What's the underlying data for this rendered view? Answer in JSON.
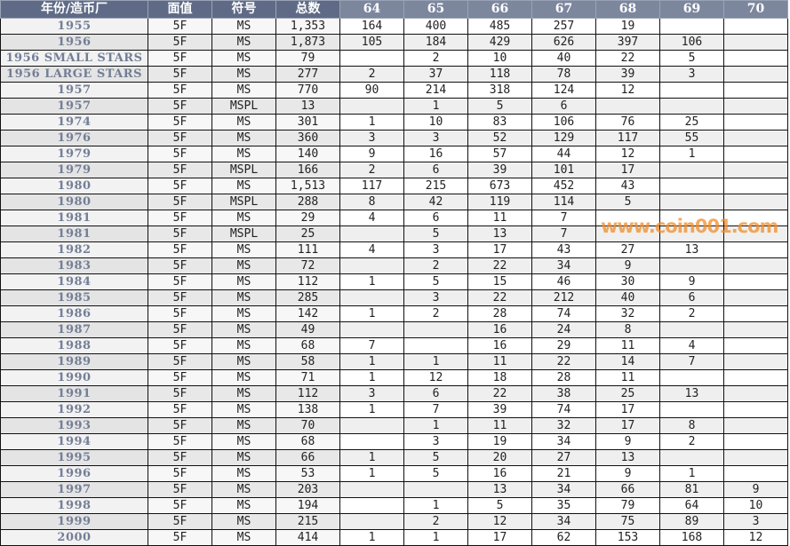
{
  "table": {
    "headers": [
      "年份/造币厂",
      "面值",
      "符号",
      "总数",
      "64",
      "65",
      "66",
      "67",
      "68",
      "69",
      "70"
    ],
    "rows": [
      [
        "1955",
        "5F",
        "MS",
        "1,353",
        "164",
        "400",
        "485",
        "257",
        "19",
        "",
        ""
      ],
      [
        "1956",
        "5F",
        "MS",
        "1,873",
        "105",
        "184",
        "429",
        "626",
        "397",
        "106",
        ""
      ],
      [
        "1956 SMALL STARS",
        "5F",
        "MS",
        "79",
        "",
        "2",
        "10",
        "40",
        "22",
        "5",
        ""
      ],
      [
        "1956 LARGE STARS",
        "5F",
        "MS",
        "277",
        "2",
        "37",
        "118",
        "78",
        "39",
        "3",
        ""
      ],
      [
        "1957",
        "5F",
        "MS",
        "770",
        "90",
        "214",
        "318",
        "124",
        "12",
        "",
        ""
      ],
      [
        "1957",
        "5F",
        "MSPL",
        "13",
        "",
        "1",
        "5",
        "6",
        "",
        "",
        ""
      ],
      [
        "1974",
        "5F",
        "MS",
        "301",
        "1",
        "10",
        "83",
        "106",
        "76",
        "25",
        ""
      ],
      [
        "1976",
        "5F",
        "MS",
        "360",
        "3",
        "3",
        "52",
        "129",
        "117",
        "55",
        ""
      ],
      [
        "1979",
        "5F",
        "MS",
        "140",
        "9",
        "16",
        "57",
        "44",
        "12",
        "1",
        ""
      ],
      [
        "1979",
        "5F",
        "MSPL",
        "166",
        "2",
        "6",
        "39",
        "101",
        "17",
        "",
        ""
      ],
      [
        "1980",
        "5F",
        "MS",
        "1,513",
        "117",
        "215",
        "673",
        "452",
        "43",
        "",
        ""
      ],
      [
        "1980",
        "5F",
        "MSPL",
        "288",
        "8",
        "42",
        "119",
        "114",
        "5",
        "",
        ""
      ],
      [
        "1981",
        "5F",
        "MS",
        "29",
        "4",
        "6",
        "11",
        "7",
        "",
        "",
        ""
      ],
      [
        "1981",
        "5F",
        "MSPL",
        "25",
        "",
        "5",
        "13",
        "7",
        "",
        "",
        ""
      ],
      [
        "1982",
        "5F",
        "MS",
        "111",
        "4",
        "3",
        "17",
        "43",
        "27",
        "13",
        ""
      ],
      [
        "1983",
        "5F",
        "MS",
        "72",
        "",
        "2",
        "22",
        "34",
        "9",
        "",
        ""
      ],
      [
        "1984",
        "5F",
        "MS",
        "112",
        "1",
        "5",
        "15",
        "46",
        "30",
        "9",
        ""
      ],
      [
        "1985",
        "5F",
        "MS",
        "285",
        "",
        "3",
        "22",
        "212",
        "40",
        "6",
        ""
      ],
      [
        "1986",
        "5F",
        "MS",
        "142",
        "1",
        "2",
        "28",
        "74",
        "32",
        "2",
        ""
      ],
      [
        "1987",
        "5F",
        "MS",
        "49",
        "",
        "",
        "16",
        "24",
        "8",
        "",
        ""
      ],
      [
        "1988",
        "5F",
        "MS",
        "68",
        "7",
        "",
        "16",
        "29",
        "11",
        "4",
        ""
      ],
      [
        "1989",
        "5F",
        "MS",
        "58",
        "1",
        "1",
        "11",
        "22",
        "14",
        "7",
        ""
      ],
      [
        "1990",
        "5F",
        "MS",
        "71",
        "1",
        "12",
        "18",
        "28",
        "11",
        "",
        ""
      ],
      [
        "1991",
        "5F",
        "MS",
        "112",
        "3",
        "6",
        "22",
        "38",
        "25",
        "13",
        ""
      ],
      [
        "1992",
        "5F",
        "MS",
        "138",
        "1",
        "7",
        "39",
        "74",
        "17",
        "",
        ""
      ],
      [
        "1993",
        "5F",
        "MS",
        "70",
        "",
        "1",
        "11",
        "32",
        "17",
        "8",
        ""
      ],
      [
        "1994",
        "5F",
        "MS",
        "68",
        "",
        "3",
        "19",
        "34",
        "9",
        "2",
        ""
      ],
      [
        "1995",
        "5F",
        "MS",
        "66",
        "1",
        "5",
        "20",
        "27",
        "13",
        "",
        ""
      ],
      [
        "1996",
        "5F",
        "MS",
        "53",
        "1",
        "5",
        "16",
        "21",
        "9",
        "1",
        ""
      ],
      [
        "1997",
        "5F",
        "MS",
        "203",
        "",
        "",
        "13",
        "34",
        "66",
        "81",
        "9"
      ],
      [
        "1998",
        "5F",
        "MS",
        "194",
        "",
        "1",
        "5",
        "35",
        "79",
        "64",
        "10"
      ],
      [
        "1999",
        "5F",
        "MS",
        "215",
        "",
        "2",
        "12",
        "34",
        "75",
        "89",
        "3"
      ],
      [
        "2000",
        "5F",
        "MS",
        "414",
        "1",
        "1",
        "17",
        "62",
        "153",
        "168",
        "12"
      ]
    ]
  },
  "watermark": "www.coin001.com"
}
